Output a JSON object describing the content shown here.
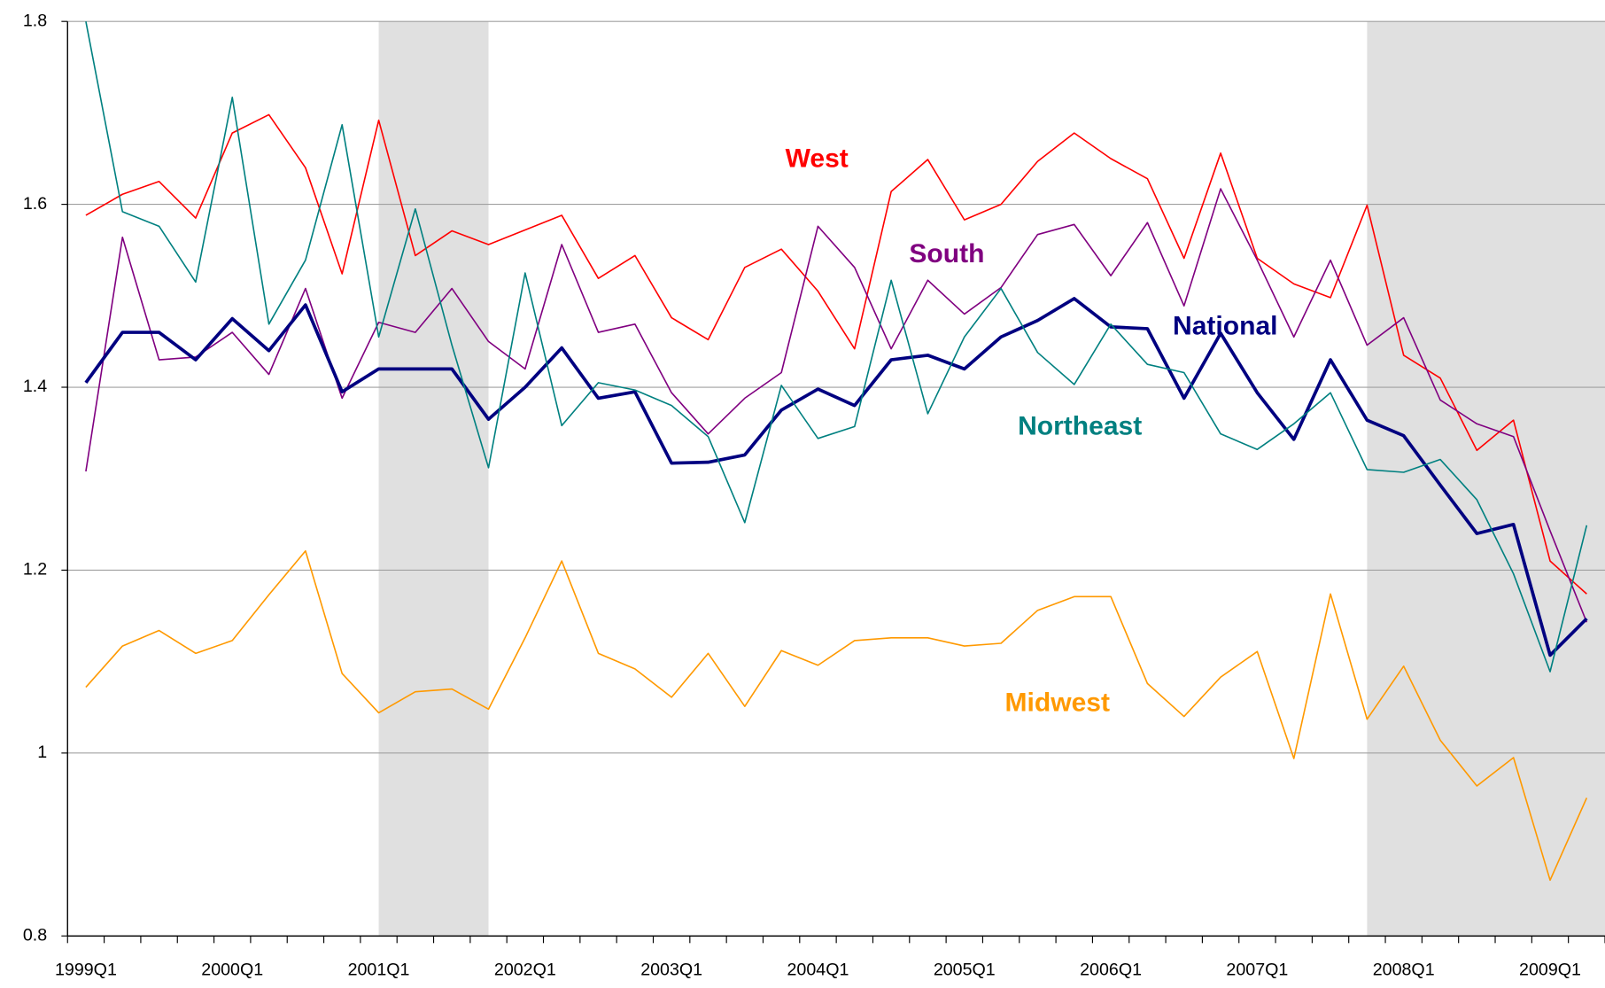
{
  "chart_data": {
    "type": "line",
    "categories": [
      "1999Q1",
      null,
      null,
      null,
      "2000Q1",
      null,
      null,
      null,
      "2001Q1",
      null,
      null,
      null,
      "2002Q1",
      null,
      null,
      null,
      "2003Q1",
      null,
      null,
      null,
      "2004Q1",
      null,
      null,
      null,
      "2005Q1",
      null,
      null,
      null,
      "2006Q1",
      null,
      null,
      null,
      "2007Q1",
      null,
      null,
      null,
      "2008Q1",
      null,
      null,
      null,
      "2009Q1",
      null
    ],
    "series": [
      {
        "name": "West",
        "color": "#ff0000",
        "values": [
          1.588,
          1.611,
          1.625,
          1.585,
          1.678,
          1.698,
          1.64,
          1.524,
          1.692,
          1.544,
          1.571,
          1.556,
          1.572,
          1.588,
          1.519,
          1.544,
          1.476,
          1.452,
          1.531,
          1.551,
          1.505,
          1.442,
          1.614,
          1.649,
          1.583,
          1.6,
          1.647,
          1.678,
          1.65,
          1.628,
          1.541,
          1.656,
          1.541,
          1.513,
          1.498,
          1.599,
          1.435,
          1.41,
          1.331,
          1.364,
          1.21,
          1.174
        ]
      },
      {
        "name": "South",
        "color": "#800080",
        "values": [
          1.308,
          1.564,
          1.43,
          1.433,
          1.46,
          1.414,
          1.508,
          1.388,
          1.471,
          1.46,
          1.508,
          1.45,
          1.42,
          1.556,
          1.46,
          1.469,
          1.394,
          1.349,
          1.388,
          1.416,
          1.576,
          1.531,
          1.442,
          1.517,
          1.48,
          1.509,
          1.567,
          1.578,
          1.522,
          1.58,
          1.489,
          1.617,
          1.539,
          1.455,
          1.539,
          1.446,
          1.476,
          1.386,
          1.36,
          1.346,
          1.243,
          1.143
        ]
      },
      {
        "name": "National",
        "color": "#000080",
        "values": [
          1.405,
          1.46,
          1.46,
          1.43,
          1.475,
          1.44,
          1.49,
          1.395,
          1.42,
          1.42,
          1.42,
          1.365,
          1.4,
          1.443,
          1.388,
          1.395,
          1.317,
          1.318,
          1.326,
          1.375,
          1.398,
          1.38,
          1.43,
          1.435,
          1.42,
          1.455,
          1.473,
          1.497,
          1.466,
          1.464,
          1.388,
          1.459,
          1.394,
          1.343,
          1.43,
          1.364,
          1.347,
          1.293,
          1.24,
          1.25,
          1.107,
          1.147
        ]
      },
      {
        "name": "Northeast",
        "color": "#008080",
        "values": [
          1.8,
          1.592,
          1.576,
          1.515,
          1.717,
          1.469,
          1.539,
          1.687,
          1.455,
          1.595,
          1.446,
          1.312,
          1.525,
          1.358,
          1.405,
          1.397,
          1.38,
          1.346,
          1.252,
          1.402,
          1.344,
          1.357,
          1.517,
          1.371,
          1.455,
          1.508,
          1.438,
          1.403,
          1.469,
          1.425,
          1.416,
          1.349,
          1.332,
          1.36,
          1.394,
          1.31,
          1.307,
          1.321,
          1.277,
          1.196,
          1.089,
          1.249
        ]
      },
      {
        "name": "Midwest",
        "color": "#ff9900",
        "values": [
          1.072,
          1.117,
          1.134,
          1.109,
          1.123,
          1.173,
          1.221,
          1.087,
          1.044,
          1.067,
          1.07,
          1.048,
          1.126,
          1.21,
          1.109,
          1.092,
          1.061,
          1.109,
          1.051,
          1.112,
          1.096,
          1.123,
          1.126,
          1.126,
          1.117,
          1.12,
          1.156,
          1.171,
          1.171,
          1.076,
          1.04,
          1.083,
          1.111,
          0.994,
          1.174,
          1.037,
          1.095,
          1.014,
          0.964,
          0.995,
          0.861,
          0.951
        ]
      }
    ],
    "shaded_ranges": [
      [
        8,
        11
      ],
      [
        35,
        41.5
      ]
    ],
    "shade_color": "#e0e0e0",
    "ylim": [
      0.8,
      1.8
    ],
    "yticks": [
      0.8,
      1,
      1.2,
      1.4,
      1.6,
      1.8
    ],
    "grid": true
  }
}
